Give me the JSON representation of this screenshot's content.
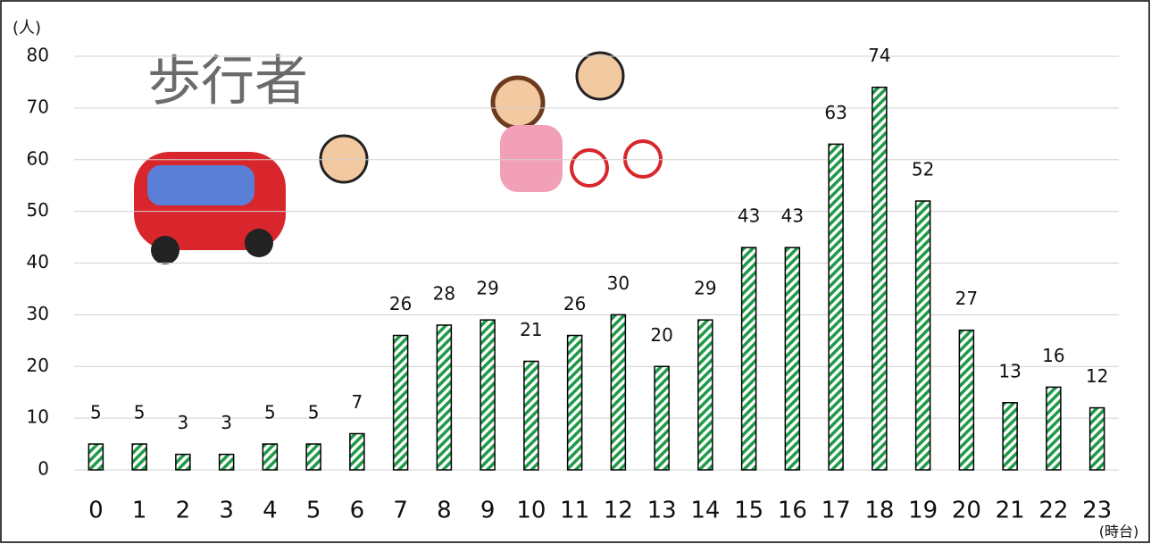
{
  "chart_data": {
    "type": "bar",
    "title": "歩行者",
    "y_label": "(人)",
    "x_label": "(時台)",
    "categories": [
      "0",
      "1",
      "2",
      "3",
      "4",
      "5",
      "6",
      "7",
      "8",
      "9",
      "10",
      "11",
      "12",
      "13",
      "14",
      "15",
      "16",
      "17",
      "18",
      "19",
      "20",
      "21",
      "22",
      "23"
    ],
    "values": [
      5,
      5,
      3,
      3,
      5,
      5,
      7,
      26,
      28,
      29,
      21,
      26,
      30,
      20,
      29,
      43,
      43,
      63,
      74,
      52,
      27,
      13,
      16,
      12
    ],
    "color": "#1f9a48",
    "ylim": [
      0,
      80
    ],
    "yticks": [
      0,
      10,
      20,
      30,
      40,
      50,
      60,
      70,
      80
    ],
    "grid": true
  }
}
